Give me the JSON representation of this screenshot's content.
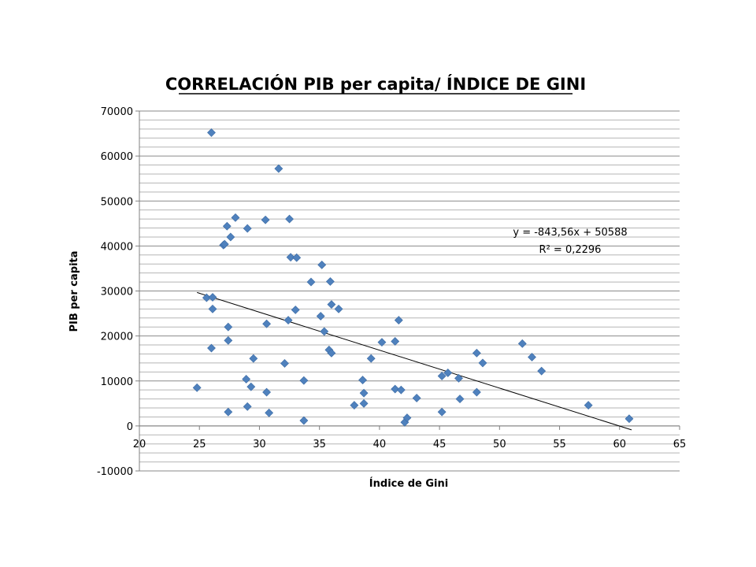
{
  "chart_data": {
    "type": "scatter",
    "title": "CORRELACIÓN PIB per capita/ ÍNDICE DE GINI",
    "xlabel": "Índice de Gini",
    "ylabel": "PIB per capita",
    "xlim": [
      20,
      65
    ],
    "ylim": [
      -10000,
      70000
    ],
    "x_ticks": [
      20,
      25,
      30,
      35,
      40,
      45,
      50,
      55,
      60,
      65
    ],
    "y_ticks": [
      -10000,
      0,
      10000,
      20000,
      30000,
      40000,
      50000,
      60000,
      70000
    ],
    "y_gridline_step": 2000,
    "grid": true,
    "marker_color": "#4F81BD",
    "trendline": {
      "slope": -843.56,
      "intercept": 50588,
      "x_range": [
        24.8,
        61
      ],
      "color": "#000000",
      "equation_label": "y = -843,56x + 50588",
      "r2_label": "R² = 0,2296"
    },
    "points": [
      [
        24.8,
        8500
      ],
      [
        25.6,
        28500
      ],
      [
        26.0,
        65200
      ],
      [
        26.0,
        17300
      ],
      [
        26.1,
        28600
      ],
      [
        26.1,
        26000
      ],
      [
        27.0,
        40200
      ],
      [
        27.1,
        40400
      ],
      [
        27.3,
        44400
      ],
      [
        27.4,
        19000
      ],
      [
        27.4,
        22000
      ],
      [
        27.4,
        3100
      ],
      [
        27.6,
        42000
      ],
      [
        28.0,
        46300
      ],
      [
        28.9,
        10400
      ],
      [
        29.0,
        43900
      ],
      [
        29.0,
        4300
      ],
      [
        29.3,
        8700
      ],
      [
        29.5,
        15000
      ],
      [
        30.5,
        45800
      ],
      [
        30.6,
        22700
      ],
      [
        30.6,
        7500
      ],
      [
        30.8,
        2900
      ],
      [
        31.6,
        57200
      ],
      [
        32.1,
        13900
      ],
      [
        32.4,
        23500
      ],
      [
        32.5,
        46000
      ],
      [
        32.6,
        37500
      ],
      [
        33.0,
        25800
      ],
      [
        33.1,
        37400
      ],
      [
        33.7,
        10100
      ],
      [
        33.7,
        1200
      ],
      [
        34.3,
        32000
      ],
      [
        35.1,
        24400
      ],
      [
        35.2,
        35800
      ],
      [
        35.4,
        21000
      ],
      [
        35.8,
        16900
      ],
      [
        35.9,
        32100
      ],
      [
        36.0,
        27000
      ],
      [
        36.0,
        16200
      ],
      [
        36.6,
        26000
      ],
      [
        37.9,
        4600
      ],
      [
        38.6,
        10200
      ],
      [
        38.7,
        7300
      ],
      [
        38.7,
        5000
      ],
      [
        39.3,
        15000
      ],
      [
        40.2,
        18600
      ],
      [
        41.3,
        18800
      ],
      [
        41.3,
        8200
      ],
      [
        41.6,
        23500
      ],
      [
        41.8,
        8000
      ],
      [
        42.1,
        800
      ],
      [
        42.3,
        1800
      ],
      [
        43.1,
        6200
      ],
      [
        45.2,
        11100
      ],
      [
        45.2,
        3100
      ],
      [
        45.7,
        11800
      ],
      [
        46.6,
        10600
      ],
      [
        46.7,
        6000
      ],
      [
        48.1,
        16200
      ],
      [
        48.1,
        7500
      ],
      [
        48.6,
        14000
      ],
      [
        51.9,
        18300
      ],
      [
        52.7,
        15300
      ],
      [
        53.5,
        12200
      ],
      [
        57.4,
        4600
      ],
      [
        60.8,
        1600
      ]
    ]
  }
}
